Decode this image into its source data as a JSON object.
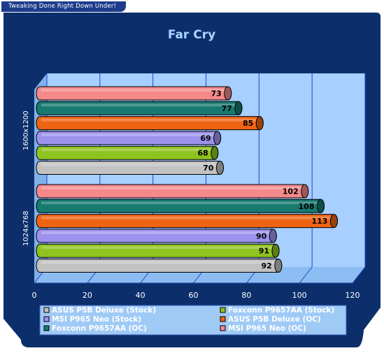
{
  "banner": "Tweaking Done Right Down Under!",
  "colors": {
    "background": "#0c2f6c",
    "plot_wall": "#a7cfff",
    "plot_floor": "#8cbdf2",
    "gridline": "#1b46c8",
    "legend_bg": "#a0caf6"
  },
  "chart_data": {
    "type": "bar",
    "orientation": "horizontal",
    "title": "Far Cry",
    "xlabel": "",
    "ylabel": "",
    "xlim": [
      0,
      120
    ],
    "x_ticks": [
      "0",
      "20",
      "40",
      "60",
      "80",
      "100",
      "120"
    ],
    "grid": true,
    "legend_position": "bottom",
    "categories": [
      "1600x1200",
      "1024x768"
    ],
    "series": [
      {
        "name": "ASUS P5B Deluxe (Stock)",
        "color": "#c2c2c2",
        "values": [
          70,
          92
        ]
      },
      {
        "name": "Foxconn P9657AA (Stock)",
        "color": "#8fc31f",
        "values": [
          68,
          91
        ]
      },
      {
        "name": "MSI P965 Neo (Stock)",
        "color": "#9d93ee",
        "values": [
          69,
          90
        ]
      },
      {
        "name": "ASUS P5B Deluxe (OC)",
        "color": "#ee6412",
        "values": [
          85,
          113
        ]
      },
      {
        "name": "Foxconn P9657AA (OC)",
        "color": "#177a70",
        "values": [
          77,
          108
        ]
      },
      {
        "name": "MSI P965 Neo (OC)",
        "color": "#f5898a",
        "values": [
          73,
          102
        ]
      }
    ]
  }
}
